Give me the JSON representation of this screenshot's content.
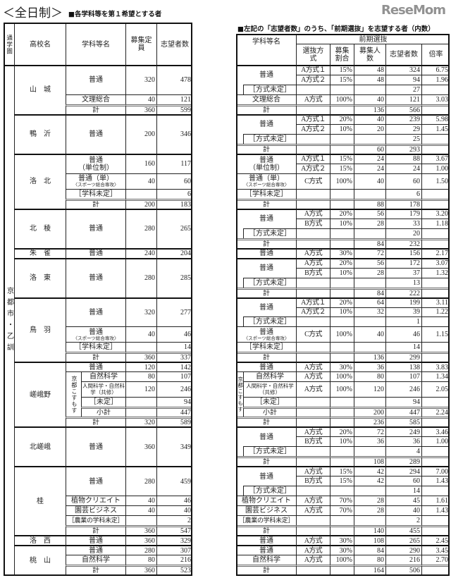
{
  "title": "＜全日制＞",
  "left_subtitle": "■各学科等を第１希望とする者",
  "right_subtitle": "■左記の「志望者数」のうち、「前期選抜」を志望する者（内数）",
  "left_headers": {
    "area": "通学圏",
    "school": "高校名",
    "dept": "学科等名",
    "quota": "募集定員",
    "applicants": "志望者数"
  },
  "right_headers": {
    "dept": "学科等名",
    "zenki": "前期選抜",
    "method": "選抜方式",
    "ratio": "募集割合",
    "quota": "募集人数",
    "applicants": "志望者数",
    "rate": "倍率"
  },
  "area": "京都市・乙訓",
  "watermark": "ReseMom",
  "schools": [
    {
      "name": "山　城",
      "depts": [
        {
          "name": "普通",
          "quota": "320",
          "applicants": "478",
          "groups": [
            {
              "name": "普通",
              "rows": [
                {
                  "m": "A方式１",
                  "r": "15%",
                  "q": "48",
                  "a": "324",
                  "x": "6.75"
                },
                {
                  "m": "A方式２",
                  "r": "15%",
                  "q": "48",
                  "a": "94",
                  "x": "1.96"
                }
              ]
            },
            {
              "name": "［方式未定］",
              "rows": [
                {
                  "a": "27"
                }
              ]
            }
          ]
        },
        {
          "name": "文理総合",
          "quota": "40",
          "applicants": "121",
          "groups": [
            {
              "name": "文理総合",
              "rows": [
                {
                  "m": "A方式",
                  "r": "100%",
                  "q": "40",
                  "a": "121",
                  "x": "3.03"
                }
              ]
            }
          ]
        },
        {
          "name": "計",
          "quota": "360",
          "applicants": "599",
          "groups": [
            {
              "name": "計",
              "rows": [
                {
                  "q": "136",
                  "a": "566"
                }
              ]
            }
          ]
        }
      ]
    },
    {
      "name": "鴨　沂",
      "depts": [
        {
          "name": "普通",
          "quota": "200",
          "applicants": "346",
          "groups": [
            {
              "name": "普通",
              "rows": [
                {
                  "m": "A方式１",
                  "r": "20%",
                  "q": "40",
                  "a": "239",
                  "x": "5.98"
                },
                {
                  "m": "A方式２",
                  "r": "10%",
                  "q": "20",
                  "a": "29",
                  "x": "1.45"
                }
              ]
            },
            {
              "name": "［方式未定］",
              "rows": [
                {
                  "a": "25"
                }
              ]
            },
            {
              "name": "計",
              "rows": [
                {
                  "q": "60",
                  "a": "293"
                }
              ]
            }
          ]
        }
      ]
    },
    {
      "name": "洛　北",
      "depts": [
        {
          "name": "普通",
          "sub": "（単位制）",
          "quota": "160",
          "applicants": "117",
          "groups": [
            {
              "name": "普通",
              "sub": "（単位制）",
              "rows": [
                {
                  "m": "A方式１",
                  "r": "15%",
                  "q": "24",
                  "a": "88",
                  "x": "3.67"
                },
                {
                  "m": "A方式２",
                  "r": "15%",
                  "q": "24",
                  "a": "24",
                  "x": "1.00"
                }
              ]
            }
          ]
        },
        {
          "name": "普通（単）",
          "note": "〈スポーツ総合専攻〉",
          "quota": "40",
          "applicants": "60",
          "groups": [
            {
              "name": "普通（単）",
              "note": "〈スポーツ総合専攻〉",
              "rows": [
                {
                  "m": "C方式",
                  "r": "100%",
                  "q": "40",
                  "a": "60",
                  "x": "1.50"
                }
              ]
            }
          ]
        },
        {
          "name": "［学科未定］",
          "applicants": "6",
          "groups": [
            {
              "name": "［学科未定］",
              "rows": [
                {
                  "a": "6"
                }
              ]
            }
          ]
        },
        {
          "name": "計",
          "quota": "200",
          "applicants": "183",
          "groups": [
            {
              "name": "計",
              "rows": [
                {
                  "q": "88",
                  "a": "178"
                }
              ]
            }
          ]
        }
      ]
    },
    {
      "name": "北　稜",
      "depts": [
        {
          "name": "普通",
          "quota": "280",
          "applicants": "265",
          "groups": [
            {
              "name": "普通",
              "rows": [
                {
                  "m": "A方式",
                  "r": "20%",
                  "q": "56",
                  "a": "179",
                  "x": "3.20"
                },
                {
                  "m": "B方式",
                  "r": "10%",
                  "q": "28",
                  "a": "33",
                  "x": "1.18"
                }
              ]
            },
            {
              "name": "［方式未定］",
              "rows": [
                {
                  "a": "20"
                }
              ]
            },
            {
              "name": "計",
              "rows": [
                {
                  "q": "84",
                  "a": "232"
                }
              ]
            }
          ]
        }
      ]
    },
    {
      "name": "朱　雀",
      "depts": [
        {
          "name": "普通",
          "quota": "240",
          "applicants": "204",
          "groups": [
            {
              "name": "普通",
              "rows": [
                {
                  "m": "A方式",
                  "r": "30%",
                  "q": "72",
                  "a": "156",
                  "x": "2.17"
                }
              ]
            }
          ]
        }
      ]
    },
    {
      "name": "洛　東",
      "depts": [
        {
          "name": "普通",
          "quota": "280",
          "applicants": "285",
          "groups": [
            {
              "name": "普通",
              "rows": [
                {
                  "m": "A方式",
                  "r": "20%",
                  "q": "56",
                  "a": "172",
                  "x": "3.07"
                },
                {
                  "m": "B方式",
                  "r": "10%",
                  "q": "28",
                  "a": "37",
                  "x": "1.32"
                }
              ]
            },
            {
              "name": "［方式未定］",
              "rows": [
                {
                  "a": "13"
                }
              ]
            },
            {
              "name": "計",
              "rows": [
                {
                  "q": "84",
                  "a": "222"
                }
              ]
            }
          ]
        }
      ]
    },
    {
      "name": "鳥　羽",
      "depts": [
        {
          "name": "普通",
          "quota": "320",
          "applicants": "277",
          "groups": [
            {
              "name": "普通",
              "rows": [
                {
                  "m": "A方式１",
                  "r": "20%",
                  "q": "64",
                  "a": "199",
                  "x": "3.11"
                },
                {
                  "m": "A方式２",
                  "r": "10%",
                  "q": "32",
                  "a": "39",
                  "x": "1.22"
                }
              ]
            },
            {
              "name": "［方式未定］",
              "rows": [
                {
                  "a": "1"
                }
              ]
            }
          ]
        },
        {
          "name": "普通",
          "note": "〈スポーツ総合専攻〉",
          "quota": "40",
          "applicants": "46",
          "groups": [
            {
              "name": "普通",
              "note": "〈スポーツ総合専攻〉",
              "rows": [
                {
                  "m": "C方式",
                  "r": "100%",
                  "q": "40",
                  "a": "46",
                  "x": "1.15"
                }
              ]
            }
          ]
        },
        {
          "name": "［学科未定］",
          "applicants": "14",
          "groups": [
            {
              "name": "［学科未定］",
              "rows": [
                {
                  "a": "14"
                }
              ]
            }
          ]
        },
        {
          "name": "計",
          "quota": "360",
          "applicants": "337",
          "groups": [
            {
              "name": "計",
              "rows": [
                {
                  "q": "136",
                  "a": "299"
                }
              ]
            }
          ]
        }
      ]
    },
    {
      "name": "嵯峨野",
      "depts": [
        {
          "name": "普通",
          "quota": "120",
          "applicants": "142",
          "groups": [
            {
              "name": "普通",
              "rows": [
                {
                  "m": "A方式",
                  "r": "30%",
                  "q": "36",
                  "a": "138",
                  "x": "3.83"
                }
              ]
            }
          ]
        },
        {
          "name": "自然科学",
          "course_group": "京都こすもす",
          "quota": "80",
          "applicants": "107",
          "groups": [
            {
              "name": "自然科学",
              "rows": [
                {
                  "m": "A方式",
                  "r": "100%",
                  "q": "80",
                  "a": "107",
                  "x": "1.34"
                }
              ]
            }
          ]
        },
        {
          "name": "人間科学・自然科学（共修）",
          "course_group": "京都こすもす",
          "quota": "120",
          "applicants": "246",
          "groups": [
            {
              "name": "人間科学・自然科学（共修）",
              "rows": [
                {
                  "m": "A方式",
                  "r": "100%",
                  "q": "120",
                  "a": "246",
                  "x": "2.05"
                }
              ]
            }
          ]
        },
        {
          "name": "［未定］",
          "course_group": "京都こすもす",
          "applicants": "94",
          "groups": [
            {
              "name": "［未定］",
              "rows": [
                {
                  "a": "94"
                }
              ]
            }
          ]
        },
        {
          "name": "小計",
          "course_group": "京都こすもす",
          "applicants": "447",
          "groups": [
            {
              "name": "小計",
              "rows": [
                {
                  "q": "200",
                  "a": "447",
                  "x": "2.24"
                }
              ]
            }
          ]
        },
        {
          "name": "計",
          "quota": "320",
          "applicants": "589",
          "groups": [
            {
              "name": "計",
              "rows": [
                {
                  "q": "236",
                  "a": "585"
                }
              ]
            }
          ]
        }
      ]
    },
    {
      "name": "北嵯峨",
      "depts": [
        {
          "name": "普通",
          "quota": "360",
          "applicants": "349",
          "groups": [
            {
              "name": "普通",
              "rows": [
                {
                  "m": "A方式",
                  "r": "20%",
                  "q": "72",
                  "a": "249",
                  "x": "3.46"
                },
                {
                  "m": "B方式",
                  "r": "10%",
                  "q": "36",
                  "a": "36",
                  "x": "1.00"
                }
              ]
            },
            {
              "name": "［方式未定］",
              "rows": [
                {
                  "a": "4"
                }
              ]
            },
            {
              "name": "計",
              "rows": [
                {
                  "q": "108",
                  "a": "289"
                }
              ]
            }
          ]
        }
      ]
    },
    {
      "name": "桂",
      "depts": [
        {
          "name": "普通",
          "quota": "280",
          "applicants": "459",
          "groups": [
            {
              "name": "普通",
              "rows": [
                {
                  "m": "A方式",
                  "r": "15%",
                  "q": "42",
                  "a": "294",
                  "x": "7.00"
                },
                {
                  "m": "B方式",
                  "r": "15%",
                  "q": "42",
                  "a": "60",
                  "x": "1.43"
                }
              ]
            },
            {
              "name": "［方式未定］",
              "rows": [
                {
                  "a": "14"
                }
              ]
            }
          ]
        },
        {
          "name": "植物クリエイト",
          "quota": "40",
          "applicants": "46",
          "groups": [
            {
              "name": "植物クリエイト",
              "rows": [
                {
                  "m": "A方式",
                  "r": "70%",
                  "q": "28",
                  "a": "45",
                  "x": "1.61"
                }
              ]
            }
          ]
        },
        {
          "name": "園芸ビジネス",
          "quota": "40",
          "applicants": "40",
          "groups": [
            {
              "name": "園芸ビジネス",
              "rows": [
                {
                  "m": "A方式",
                  "r": "70%",
                  "q": "28",
                  "a": "40",
                  "x": "1.43"
                }
              ]
            }
          ]
        },
        {
          "name": "［農業の学科未定］",
          "applicants": "2",
          "groups": [
            {
              "name": "［農業の学科未定］",
              "rows": [
                {
                  "a": "2"
                }
              ]
            }
          ]
        },
        {
          "name": "計",
          "quota": "360",
          "applicants": "547",
          "groups": [
            {
              "name": "計",
              "rows": [
                {
                  "q": "140",
                  "a": "455"
                }
              ]
            }
          ]
        }
      ]
    },
    {
      "name": "洛　西",
      "depts": [
        {
          "name": "普通",
          "quota": "360",
          "applicants": "329",
          "groups": [
            {
              "name": "普通",
              "rows": [
                {
                  "m": "A方式",
                  "r": "30%",
                  "q": "108",
                  "a": "265",
                  "x": "2.45"
                }
              ]
            }
          ]
        }
      ]
    },
    {
      "name": "桃　山",
      "depts": [
        {
          "name": "普通",
          "quota": "280",
          "applicants": "307",
          "groups": [
            {
              "name": "普通",
              "rows": [
                {
                  "m": "A方式",
                  "r": "30%",
                  "q": "84",
                  "a": "290",
                  "x": "3.45"
                }
              ]
            }
          ]
        },
        {
          "name": "自然科学",
          "quota": "80",
          "applicants": "216",
          "groups": [
            {
              "name": "自然科学",
              "rows": [
                {
                  "m": "A方式",
                  "r": "100%",
                  "q": "80",
                  "a": "216",
                  "x": "2.70"
                }
              ]
            }
          ]
        },
        {
          "name": "計",
          "quota": "360",
          "applicants": "523",
          "groups": [
            {
              "name": "計",
              "rows": [
                {
                  "q": "164",
                  "a": "506"
                }
              ]
            }
          ]
        }
      ]
    }
  ]
}
